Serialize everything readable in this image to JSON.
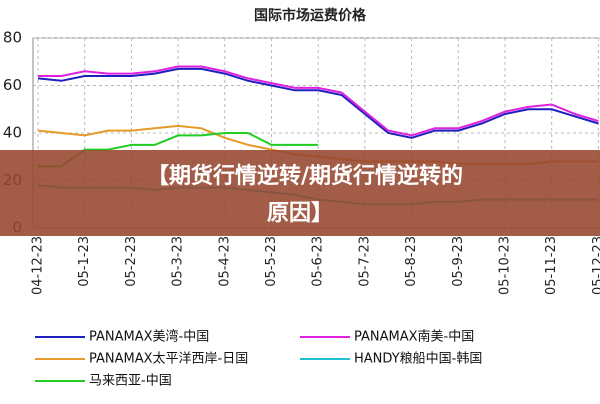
{
  "chart_data": {
    "type": "line",
    "title": "国际市场运费价格",
    "categories": [
      "04-12-23",
      null,
      "05-1-23",
      null,
      "05-2-23",
      null,
      "05-3-23",
      null,
      "05-4-23",
      null,
      "05-5-23",
      null,
      "05-6-23",
      null,
      "05-7-23",
      null,
      "05-8-23",
      null,
      "05-9-23",
      null,
      "05-10-23",
      null,
      "05-11-23",
      null,
      "05-12-23"
    ],
    "series": [
      {
        "name": "PANAMAX美湾-中国",
        "color": "#1f1fbf",
        "values": [
          63,
          62,
          64,
          64,
          64,
          65,
          67,
          67,
          65,
          62,
          60,
          58,
          58,
          56,
          48,
          40,
          38,
          41,
          41,
          44,
          48,
          50,
          50,
          47,
          44
        ]
      },
      {
        "name": "PANAMAX南美-中国",
        "color": "#e020e0",
        "values": [
          64,
          64,
          66,
          65,
          65,
          66,
          68,
          68,
          66,
          63,
          61,
          59,
          59,
          57,
          49,
          41,
          39,
          42,
          42,
          45,
          49,
          51,
          52,
          48,
          45
        ]
      },
      {
        "name": "PANAMAX太平洋西岸-日国",
        "color": "#e59a2a",
        "values": [
          41,
          40,
          39,
          41,
          41,
          42,
          43,
          42,
          38,
          35,
          33,
          31,
          30,
          29,
          28,
          28,
          28,
          28,
          27,
          27,
          27,
          27,
          28,
          28,
          28
        ]
      },
      {
        "name": "HANDY粮船中国-韩国",
        "color": "#20c0d0",
        "values": [
          18,
          17,
          17,
          17,
          17,
          16,
          17,
          17,
          17,
          16,
          15,
          14,
          12,
          11,
          10,
          10,
          10,
          11,
          11,
          12,
          12,
          12,
          12,
          12,
          12
        ]
      },
      {
        "name": "马来西亚-中国",
        "color": "#22cc22",
        "values": [
          26,
          26,
          33,
          33,
          35,
          35,
          39,
          39,
          40,
          40,
          35,
          35,
          35,
          null,
          null,
          null,
          null,
          null,
          null,
          null,
          null,
          null,
          null,
          null,
          null
        ]
      }
    ],
    "ylim": [
      0,
      80
    ],
    "yticks": [
      0,
      20,
      40,
      60,
      80
    ],
    "grid": true
  },
  "banner": {
    "line1": "【期货行情逆转/期货行情逆转的",
    "line2": "原因】"
  }
}
